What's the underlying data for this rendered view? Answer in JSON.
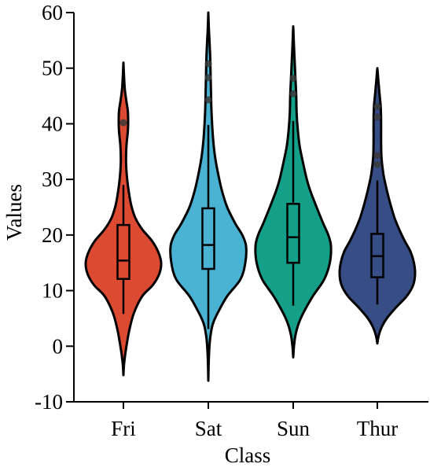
{
  "chart_data": {
    "type": "violin",
    "xlabel": "Class",
    "ylabel": "Values",
    "ylim": [
      -10,
      60
    ],
    "yticks": [
      -10,
      0,
      10,
      20,
      30,
      40,
      50,
      60
    ],
    "categories": [
      "Fri",
      "Sat",
      "Sun",
      "Thur"
    ],
    "colors": [
      "#dc4a32",
      "#4ab3d3",
      "#14a088",
      "#364e85"
    ],
    "box_stats": [
      {
        "category": "Fri",
        "whisker_low": 5.8,
        "q1": 12.1,
        "median": 15.4,
        "q3": 21.8,
        "whisker_high": 29.0,
        "outliers": [
          40.2
        ]
      },
      {
        "category": "Sat",
        "whisker_low": 3.1,
        "q1": 13.9,
        "median": 18.2,
        "q3": 24.8,
        "whisker_high": 39.8,
        "outliers": [
          44.3,
          48.3,
          50.8
        ]
      },
      {
        "category": "Sun",
        "whisker_low": 7.3,
        "q1": 15.0,
        "median": 19.6,
        "q3": 25.6,
        "whisker_high": 40.5,
        "outliers": [
          45.4,
          48.2
        ]
      },
      {
        "category": "Thur",
        "whisker_low": 7.5,
        "q1": 12.4,
        "median": 16.2,
        "q3": 20.2,
        "whisker_high": 29.8,
        "outliers": [
          32.7,
          34.3,
          41.2,
          43.1
        ]
      }
    ],
    "violin_density": [
      {
        "category": "Fri",
        "y": [
          -5.2,
          -3,
          0,
          3,
          6,
          9,
          11,
          13,
          15,
          17,
          19,
          21,
          23,
          25,
          27,
          30,
          33,
          36,
          39,
          42,
          44,
          46,
          48,
          51
        ],
        "width": [
          0,
          0.02,
          0.08,
          0.16,
          0.28,
          0.5,
          0.78,
          0.95,
          1.0,
          0.92,
          0.75,
          0.5,
          0.32,
          0.22,
          0.16,
          0.1,
          0.07,
          0.08,
          0.12,
          0.12,
          0.08,
          0.04,
          0.02,
          0
        ]
      },
      {
        "category": "Sat",
        "y": [
          -6.2,
          -3,
          0,
          2,
          4,
          6,
          9,
          12,
          15,
          18,
          20,
          22,
          25,
          28,
          31,
          34,
          37,
          40,
          43,
          46,
          49,
          52,
          55,
          57,
          60
        ],
        "width": [
          0,
          0.01,
          0.03,
          0.06,
          0.12,
          0.25,
          0.5,
          0.85,
          0.98,
          1.0,
          0.9,
          0.72,
          0.5,
          0.36,
          0.26,
          0.18,
          0.13,
          0.1,
          0.08,
          0.07,
          0.06,
          0.05,
          0.03,
          0.015,
          0
        ]
      },
      {
        "category": "Sun",
        "y": [
          -2,
          0,
          2,
          4,
          6,
          9,
          12,
          15,
          18,
          20,
          22,
          25,
          28,
          30,
          33,
          36,
          39,
          42,
          45,
          48,
          51,
          54,
          57.5
        ],
        "width": [
          0,
          0.02,
          0.06,
          0.14,
          0.27,
          0.52,
          0.82,
          0.97,
          1.0,
          0.93,
          0.8,
          0.62,
          0.45,
          0.36,
          0.26,
          0.17,
          0.12,
          0.09,
          0.08,
          0.06,
          0.04,
          0.02,
          0
        ]
      },
      {
        "category": "Thur",
        "y": [
          0.5,
          2,
          3.5,
          5,
          7,
          9,
          11,
          13,
          15,
          17,
          19,
          21,
          23,
          25,
          27,
          29,
          31,
          34,
          37,
          40,
          43,
          46,
          50
        ],
        "width": [
          0,
          0.04,
          0.12,
          0.25,
          0.5,
          0.78,
          0.95,
          1.0,
          0.97,
          0.88,
          0.72,
          0.58,
          0.46,
          0.37,
          0.29,
          0.22,
          0.16,
          0.11,
          0.1,
          0.1,
          0.09,
          0.05,
          0
        ]
      }
    ],
    "grid": false,
    "legend": "none"
  }
}
